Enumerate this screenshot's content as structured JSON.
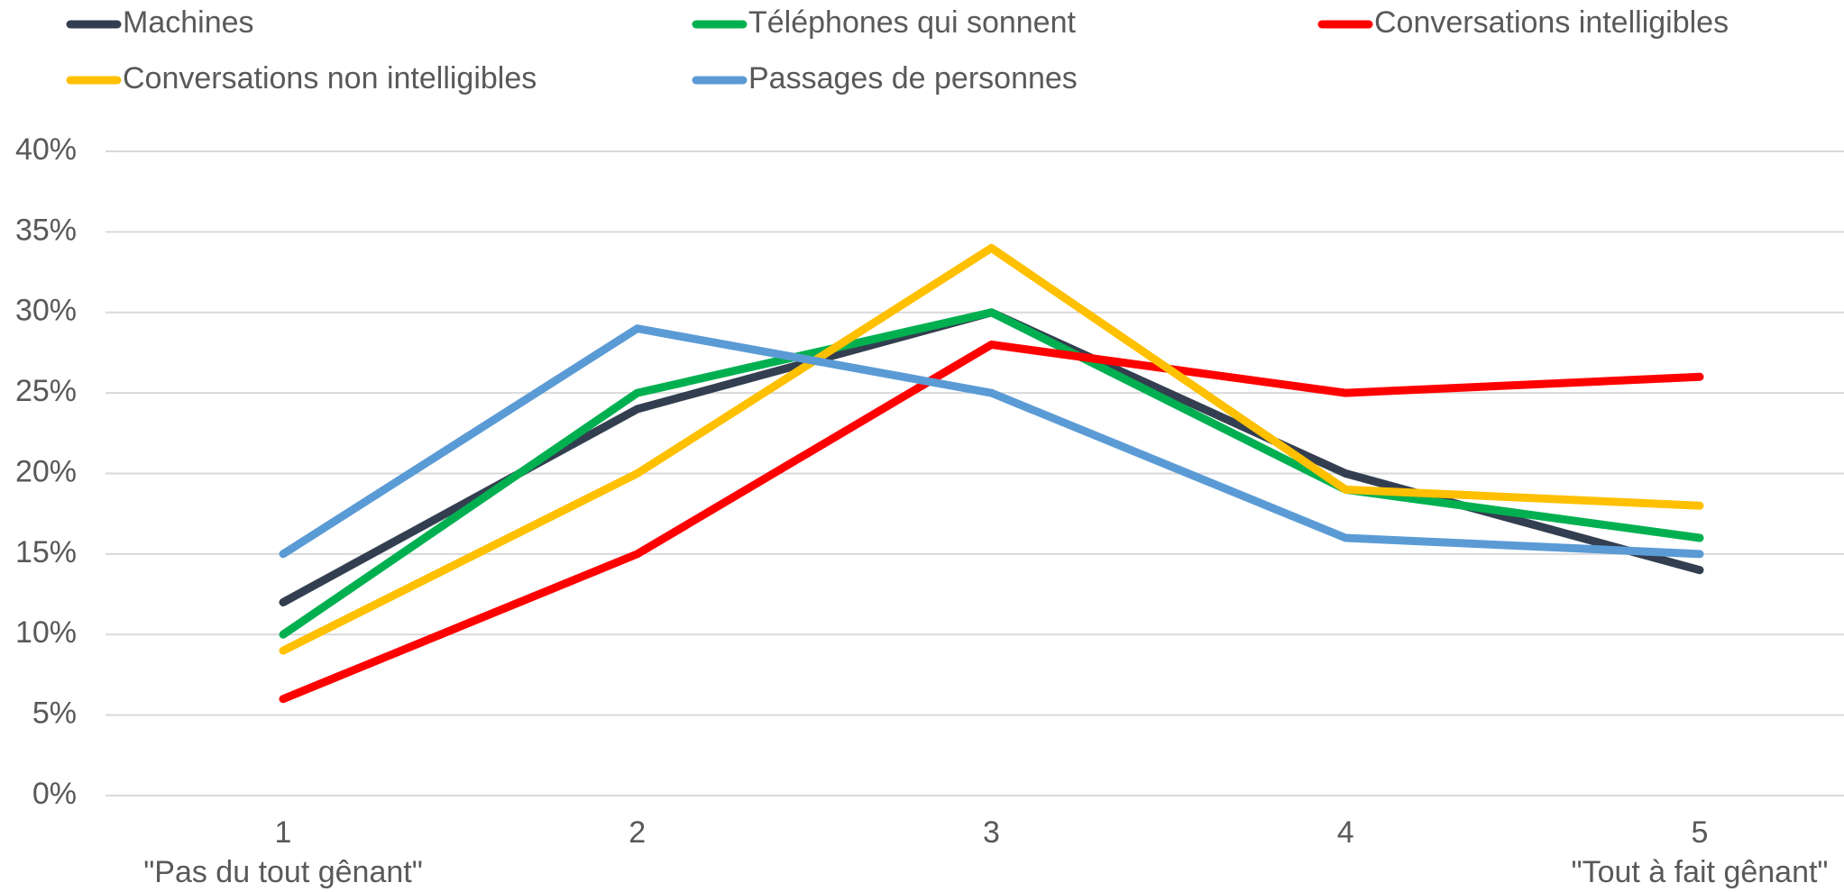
{
  "chart_data": {
    "type": "line",
    "categories": [
      "1",
      "2",
      "3",
      "4",
      "5"
    ],
    "category_sublabels": [
      "\"Pas du tout gênant\"",
      null,
      null,
      null,
      "\"Tout à fait gênant\""
    ],
    "series": [
      {
        "name": "Machines",
        "color": "#333f50",
        "values": [
          12,
          24,
          30,
          20,
          14
        ]
      },
      {
        "name": "Téléphones qui sonnent",
        "color": "#00b050",
        "values": [
          10,
          25,
          30,
          19,
          16
        ]
      },
      {
        "name": "Conversations intelligibles",
        "color": "#ff0000",
        "values": [
          6,
          15,
          28,
          25,
          26
        ]
      },
      {
        "name": "Conversations non intelligibles",
        "color": "#ffc000",
        "values": [
          9,
          20,
          34,
          19,
          18
        ]
      },
      {
        "name": "Passages de personnes",
        "color": "#5b9bd5",
        "values": [
          15,
          29,
          25,
          16,
          15
        ]
      }
    ],
    "ylim": [
      0,
      40
    ],
    "yticks": [
      {
        "value": 0,
        "label": "0%"
      },
      {
        "value": 5,
        "label": "5%"
      },
      {
        "value": 10,
        "label": "10%"
      },
      {
        "value": 15,
        "label": "15%"
      },
      {
        "value": 20,
        "label": "20%"
      },
      {
        "value": 25,
        "label": "25%"
      },
      {
        "value": 30,
        "label": "30%"
      },
      {
        "value": 35,
        "label": "35%"
      },
      {
        "value": 40,
        "label": "40%"
      }
    ],
    "grid": true,
    "legend": "top"
  }
}
